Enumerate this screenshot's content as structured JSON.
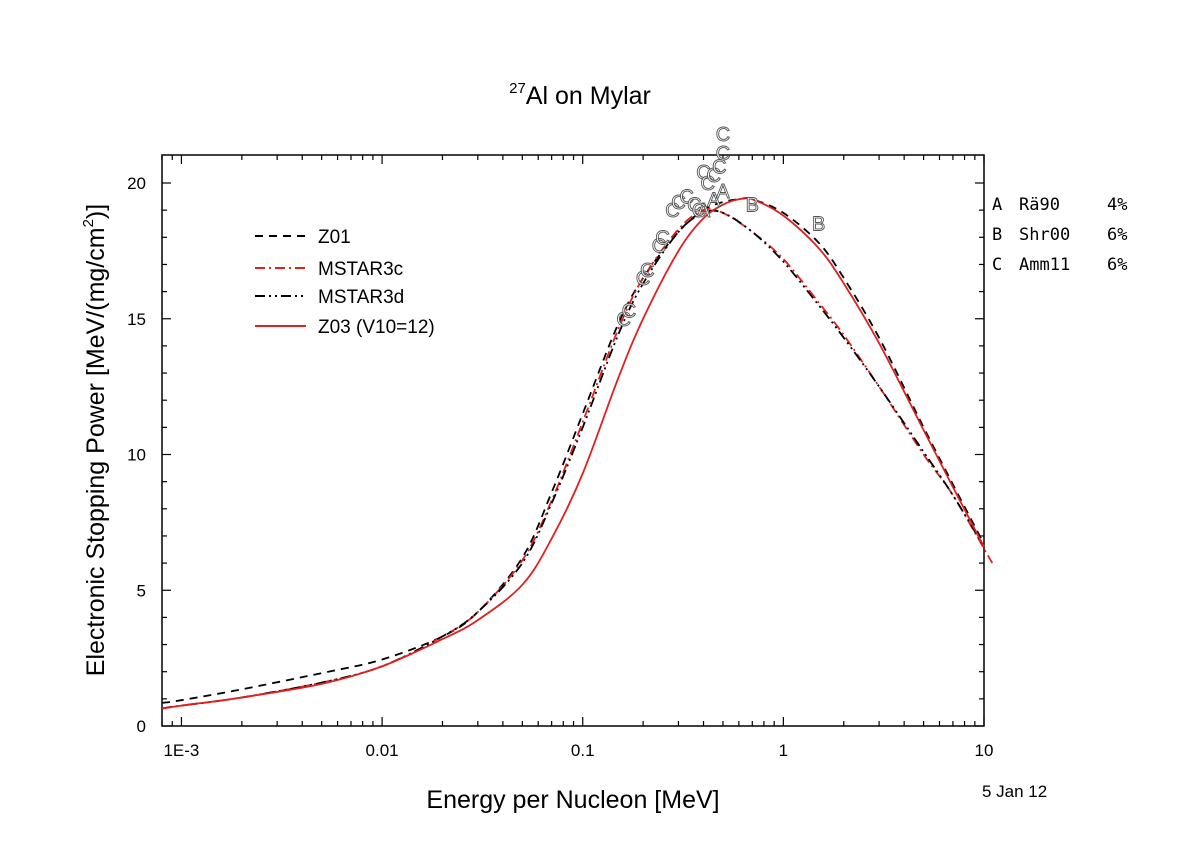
{
  "chart_data": {
    "type": "line",
    "title_mass_number": "27",
    "title_main": "Al on Mylar",
    "xlabel": "Energy per Nucleon [MeV]",
    "ylabel_main": "Electronic Stopping Power [MeV/(mg/cm",
    "ylabel_sup": "2",
    "ylabel_end": ")]",
    "x_scale": "log",
    "xlim": [
      0.0008,
      10
    ],
    "ylim": [
      0,
      21
    ],
    "x_ticks": [
      {
        "value": 0.001,
        "label": "1E-3"
      },
      {
        "value": 0.01,
        "label": "0.01"
      },
      {
        "value": 0.1,
        "label": "0.1"
      },
      {
        "value": 1,
        "label": "1"
      },
      {
        "value": 10,
        "label": "10"
      }
    ],
    "y_ticks": [
      {
        "value": 0,
        "label": "0"
      },
      {
        "value": 5,
        "label": "5"
      },
      {
        "value": 10,
        "label": "10"
      },
      {
        "value": 15,
        "label": "15"
      },
      {
        "value": 20,
        "label": "20"
      }
    ],
    "legend_position": "upper-left",
    "series": [
      {
        "name": "Z01",
        "color": "#000000",
        "dash": "8,6",
        "x": [
          0.0008,
          0.001,
          0.002,
          0.005,
          0.01,
          0.02,
          0.03,
          0.05,
          0.07,
          0.1,
          0.15,
          0.2,
          0.3,
          0.4,
          0.5,
          0.6,
          0.7,
          1,
          1.5,
          2,
          3,
          5,
          7,
          10
        ],
        "y": [
          0.85,
          0.95,
          1.35,
          1.95,
          2.45,
          3.3,
          4.2,
          6.2,
          8.6,
          11.5,
          14.8,
          16.5,
          18.2,
          19.0,
          19.3,
          19.4,
          19.4,
          18.9,
          17.8,
          16.5,
          14.3,
          11.0,
          8.9,
          6.7
        ]
      },
      {
        "name": "MSTAR3c",
        "color": "#e02020",
        "dash": "10,4,2,4",
        "x": [
          0.0008,
          0.001,
          0.002,
          0.005,
          0.01,
          0.02,
          0.03,
          0.05,
          0.07,
          0.1,
          0.15,
          0.2,
          0.3,
          0.4,
          0.5,
          0.7,
          1,
          1.5,
          2,
          3,
          5,
          7,
          11
        ],
        "y": [
          0.65,
          0.75,
          1.05,
          1.6,
          2.2,
          3.3,
          4.2,
          6.1,
          8.3,
          11.2,
          14.6,
          16.5,
          18.3,
          19.0,
          18.9,
          18.2,
          17.2,
          15.6,
          14.4,
          12.5,
          10.0,
          8.5,
          6.0
        ]
      },
      {
        "name": "MSTAR3d",
        "color": "#000000",
        "dash": "10,4,2,4,2,4",
        "x": [
          0.0008,
          0.001,
          0.002,
          0.005,
          0.01,
          0.02,
          0.03,
          0.05,
          0.07,
          0.1,
          0.15,
          0.2,
          0.3,
          0.4,
          0.5,
          0.7,
          1,
          1.5,
          2,
          3,
          5,
          7,
          10
        ],
        "y": [
          0.65,
          0.75,
          1.05,
          1.6,
          2.2,
          3.3,
          4.2,
          6.0,
          8.2,
          11.0,
          14.4,
          16.3,
          18.2,
          18.9,
          18.9,
          18.2,
          17.1,
          15.5,
          14.3,
          12.5,
          10.1,
          8.5,
          6.6
        ]
      },
      {
        "name": "Z03 (V10=12)",
        "color": "#e02020",
        "dash": "",
        "x": [
          0.0008,
          0.001,
          0.002,
          0.005,
          0.01,
          0.02,
          0.03,
          0.05,
          0.07,
          0.1,
          0.15,
          0.2,
          0.3,
          0.4,
          0.5,
          0.6,
          0.7,
          1,
          1.5,
          2,
          3,
          5,
          7,
          10
        ],
        "y": [
          0.65,
          0.75,
          1.05,
          1.55,
          2.2,
          3.2,
          3.9,
          5.2,
          6.9,
          9.3,
          12.8,
          15.0,
          17.5,
          18.7,
          19.2,
          19.4,
          19.4,
          18.8,
          17.6,
          16.3,
          14.1,
          10.9,
          8.8,
          6.6
        ]
      }
    ],
    "markers": [
      {
        "label": "A",
        "x": 0.4,
        "y": 19.0
      },
      {
        "label": "A",
        "x": 0.45,
        "y": 19.4
      },
      {
        "label": "A",
        "x": 0.5,
        "y": 19.7
      },
      {
        "label": "B",
        "x": 0.7,
        "y": 19.2
      },
      {
        "label": "B",
        "x": 1.5,
        "y": 18.5
      },
      {
        "label": "C",
        "x": 0.16,
        "y": 15.0
      },
      {
        "label": "C",
        "x": 0.17,
        "y": 15.3
      },
      {
        "label": "C",
        "x": 0.2,
        "y": 16.5
      },
      {
        "label": "C",
        "x": 0.21,
        "y": 16.8
      },
      {
        "label": "C",
        "x": 0.24,
        "y": 17.7
      },
      {
        "label": "C",
        "x": 0.25,
        "y": 18.0
      },
      {
        "label": "C",
        "x": 0.28,
        "y": 19.0
      },
      {
        "label": "C",
        "x": 0.3,
        "y": 19.3
      },
      {
        "label": "C",
        "x": 0.33,
        "y": 19.5
      },
      {
        "label": "C",
        "x": 0.36,
        "y": 19.2
      },
      {
        "label": "C",
        "x": 0.38,
        "y": 19.0
      },
      {
        "label": "C",
        "x": 0.4,
        "y": 20.4
      },
      {
        "label": "C",
        "x": 0.42,
        "y": 20.0
      },
      {
        "label": "C",
        "x": 0.45,
        "y": 20.3
      },
      {
        "label": "C",
        "x": 0.48,
        "y": 20.6
      },
      {
        "label": "C",
        "x": 0.5,
        "y": 21.1
      },
      {
        "label": "C",
        "x": 0.5,
        "y": 21.8
      }
    ],
    "references": [
      {
        "code": "A",
        "name": "Rä90",
        "percent": "4%"
      },
      {
        "code": "B",
        "name": "Shr00",
        "percent": "6%"
      },
      {
        "code": "C",
        "name": "Amm11",
        "percent": "6%"
      }
    ],
    "date": "5 Jan 12"
  }
}
